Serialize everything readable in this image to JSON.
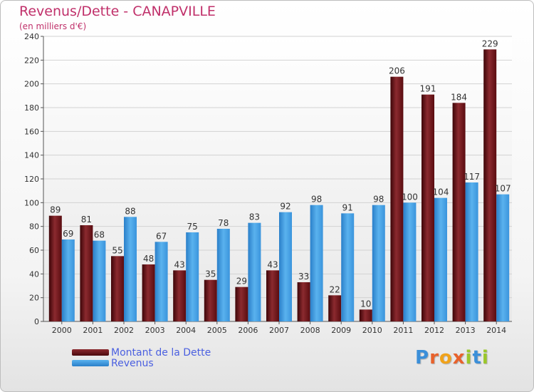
{
  "header": {
    "title": "Revenus/Dette - CANAPVILLE",
    "subtitle": "(en milliers d'€)"
  },
  "colors": {
    "dette": "#7a1a1f",
    "revenus": "#3f9be0",
    "title": "#c0306a",
    "legend_text": "#4a5fe0"
  },
  "chart_data": {
    "type": "bar",
    "categories": [
      "2000",
      "2001",
      "2002",
      "2003",
      "2004",
      "2005",
      "2006",
      "2007",
      "2008",
      "2009",
      "2010",
      "2011",
      "2012",
      "2013",
      "2014"
    ],
    "series": [
      {
        "name": "Montant de la Dette",
        "values": [
          89,
          81,
          55,
          48,
          43,
          35,
          29,
          43,
          33,
          22,
          10,
          206,
          191,
          184,
          229
        ]
      },
      {
        "name": "Revenus",
        "values": [
          69,
          68,
          88,
          67,
          75,
          78,
          83,
          92,
          98,
          91,
          98,
          100,
          104,
          117,
          107
        ]
      }
    ],
    "title": "Revenus/Dette - CANAPVILLE",
    "ylabel": "(en milliers d'€)",
    "ylim": [
      0,
      240
    ],
    "yticks": [
      0,
      20,
      40,
      60,
      80,
      100,
      120,
      140,
      160,
      180,
      200,
      220,
      240
    ],
    "grid": true,
    "legend_position": "bottom-left"
  },
  "legend": {
    "items": [
      {
        "label": "Montant de la Dette"
      },
      {
        "label": "Revenus"
      }
    ]
  },
  "branding": {
    "logo_letters": [
      "P",
      "r",
      "o",
      "x",
      "i",
      "t",
      "i"
    ],
    "logo_colors": [
      "#3b8fd9",
      "#e8622c",
      "#f0a21a",
      "#e8622c",
      "#9bc72a",
      "#3b8fd9",
      "#9bc72a"
    ]
  }
}
